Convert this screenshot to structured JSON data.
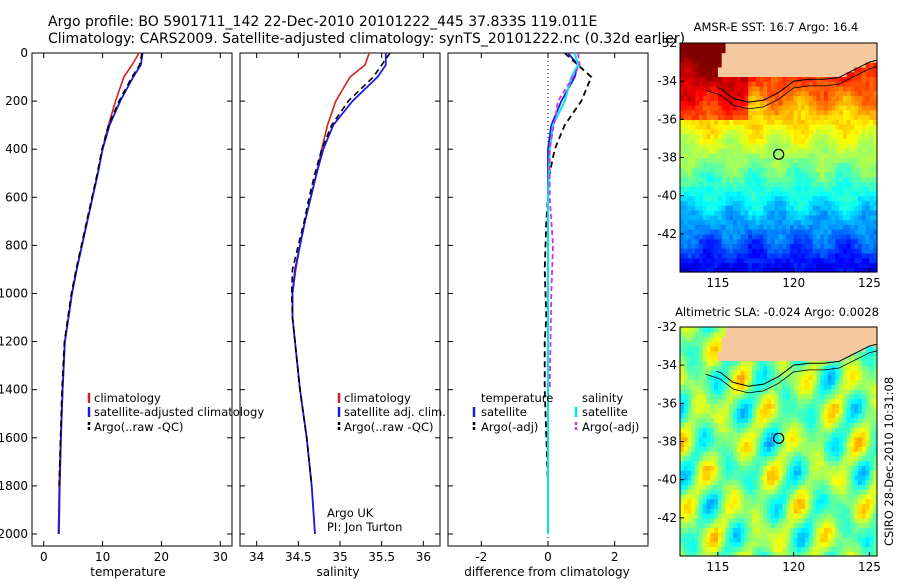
{
  "header": {
    "line1": "Argo profile: BO 5901711_142 22-Dec-2010 20101222_445 37.833S 119.011E",
    "line2": "Climatology: CARS2009. Satellite-adjusted climatology: synTS_20101222.nc (0.32d earlier)"
  },
  "side_stamp": "CSIRO 28-Dec-2010 10:31:08",
  "colors": {
    "climatology": "#d42020",
    "satellite": "#1a1ae6",
    "argo": "#000000",
    "diff_sal_sat": "#00e5ee",
    "diff_sal_argo": "#d632d6",
    "land": "#f5c8a0"
  },
  "chart_data": [
    {
      "type": "line",
      "name": "temperature-profile",
      "xlabel": "temperature",
      "ylabel": "",
      "xlim": [
        -2,
        32
      ],
      "ylim": [
        2050,
        0
      ],
      "xticks": [
        0,
        10,
        20,
        30
      ],
      "yticks": [
        0,
        200,
        400,
        600,
        800,
        1000,
        1200,
        1400,
        1600,
        1800,
        2000
      ],
      "legend": [
        "climatology",
        "satellite-adjusted climatology",
        "Argo(..raw -QC)"
      ],
      "legend_position": "lower-right",
      "series": [
        {
          "name": "climatology",
          "x": [
            16.2,
            15.0,
            13.6,
            12.2,
            11.0,
            10.0,
            9.2,
            8.3,
            7.4,
            6.5,
            5.6,
            4.8,
            4.2,
            3.6,
            3.2,
            2.95,
            2.75,
            2.6
          ],
          "y": [
            0,
            50,
            100,
            200,
            300,
            400,
            500,
            600,
            700,
            800,
            900,
            1000,
            1100,
            1200,
            1400,
            1600,
            1800,
            2000
          ]
        },
        {
          "name": "satellite-adjusted climatology",
          "x": [
            16.8,
            16.5,
            15.2,
            13.0,
            11.2,
            10.0,
            9.2,
            8.3,
            7.4,
            6.5,
            5.6,
            4.8,
            4.2,
            3.6,
            3.2,
            2.9,
            2.65,
            2.5
          ],
          "y": [
            0,
            50,
            100,
            200,
            300,
            400,
            500,
            600,
            700,
            800,
            900,
            1000,
            1100,
            1200,
            1400,
            1600,
            1800,
            2000
          ]
        },
        {
          "name": "Argo(..raw -QC)",
          "x": [
            16.7,
            16.3,
            15.0,
            12.8,
            11.0,
            9.9,
            9.1,
            8.2,
            7.3,
            6.4,
            5.5,
            4.7,
            4.1,
            3.5,
            3.1,
            2.85,
            2.6
          ],
          "y": [
            0,
            50,
            100,
            200,
            300,
            400,
            500,
            600,
            700,
            800,
            900,
            1000,
            1100,
            1200,
            1400,
            1600,
            1800
          ]
        }
      ]
    },
    {
      "type": "line",
      "name": "salinity-profile",
      "xlabel": "salinity",
      "ylabel": "",
      "xlim": [
        33.8,
        36.2
      ],
      "ylim": [
        2050,
        0
      ],
      "xticks": [
        34,
        34.5,
        35,
        35.5,
        36
      ],
      "legend": [
        "climatology",
        "satellite adj. clim.",
        "Argo(..raw -QC)"
      ],
      "legend_position": "lower-right",
      "annotation": [
        "Argo UK",
        "PI: Jon Turton"
      ],
      "series": [
        {
          "name": "climatology",
          "x": [
            35.35,
            35.3,
            35.12,
            34.95,
            34.85,
            34.78,
            34.72,
            34.65,
            34.58,
            34.52,
            34.47,
            34.43,
            34.43,
            34.46,
            34.52,
            34.6,
            34.66,
            34.7
          ],
          "y": [
            0,
            50,
            100,
            200,
            300,
            400,
            500,
            600,
            700,
            800,
            900,
            1000,
            1100,
            1200,
            1400,
            1600,
            1800,
            2000
          ]
        },
        {
          "name": "satellite adj. clim.",
          "x": [
            35.55,
            35.55,
            35.45,
            35.15,
            34.92,
            34.8,
            34.72,
            34.65,
            34.58,
            34.52,
            34.46,
            34.43,
            34.43,
            34.46,
            34.52,
            34.6,
            34.66,
            34.7
          ],
          "y": [
            0,
            50,
            100,
            200,
            300,
            400,
            500,
            600,
            700,
            800,
            900,
            1000,
            1100,
            1200,
            1400,
            1600,
            1800,
            2000
          ]
        },
        {
          "name": "Argo(..raw -QC)",
          "x": [
            35.6,
            35.5,
            35.4,
            35.1,
            34.9,
            34.78,
            34.7,
            34.63,
            34.57,
            34.5,
            34.43,
            34.42,
            34.43,
            34.46,
            34.52,
            34.6,
            34.66
          ],
          "y": [
            0,
            50,
            100,
            200,
            300,
            400,
            500,
            600,
            700,
            800,
            900,
            1000,
            1100,
            1200,
            1400,
            1600,
            1800
          ]
        }
      ]
    },
    {
      "type": "line",
      "name": "difference-profile",
      "xlabel": "difference from climatology",
      "ylabel": "",
      "xlim": [
        -3,
        3
      ],
      "ylim": [
        2050,
        0
      ],
      "xticks": [
        -2,
        0,
        2
      ],
      "legend_temperature": [
        "temperature",
        "satellite",
        "Argo(-adj)"
      ],
      "legend_salinity": [
        "salinity",
        "satellite",
        "Argo(-adj)"
      ],
      "series": [
        {
          "name": "temperature satellite",
          "x": [
            0.6,
            0.9,
            0.8,
            0.4,
            0.1,
            0.0,
            0.0,
            0.0,
            0.0,
            0.0
          ],
          "y": [
            0,
            50,
            100,
            200,
            300,
            400,
            600,
            1000,
            1600,
            2000
          ]
        },
        {
          "name": "temperature Argo(-adj)",
          "x": [
            0.5,
            1.3,
            1.0,
            0.5,
            0.2,
            0.05,
            -0.05,
            -0.1,
            -0.05,
            -0.1,
            -0.1,
            0.0
          ],
          "y": [
            0,
            100,
            200,
            300,
            400,
            500,
            700,
            900,
            1100,
            1200,
            1400,
            1800
          ]
        },
        {
          "name": "salinity satellite",
          "x": [
            0.8,
            0.9,
            0.7,
            0.5,
            0.15,
            0.05,
            0.0,
            0.0,
            0.0
          ],
          "y": [
            0,
            50,
            100,
            200,
            300,
            400,
            600,
            1000,
            2000
          ]
        },
        {
          "name": "salinity Argo(-adj)",
          "x": [
            0.9,
            0.95,
            0.75,
            0.3,
            0.05,
            0.05,
            0.15,
            0.1,
            0.05
          ],
          "y": [
            0,
            50,
            100,
            200,
            400,
            600,
            800,
            1000,
            1400
          ]
        }
      ]
    },
    {
      "type": "heatmap",
      "name": "sst-map",
      "title": "AMSR-E SST: 16.7 Argo: 16.4",
      "xlim": [
        112.5,
        125.5
      ],
      "ylim": [
        -44,
        -32
      ],
      "xticks": [
        115,
        120,
        125
      ],
      "yticks": [
        -32,
        -34,
        -36,
        -38,
        -40,
        -42
      ],
      "marker": {
        "lon": 119.011,
        "lat": -37.833
      }
    },
    {
      "type": "heatmap",
      "name": "sla-map",
      "title": "Altimetric SLA: -0.024 Argo: 0.0028",
      "xlim": [
        112.5,
        125.5
      ],
      "ylim": [
        -44,
        -32
      ],
      "xticks": [
        115,
        120,
        125
      ],
      "yticks": [
        -32,
        -34,
        -36,
        -38,
        -40,
        -42
      ],
      "marker": {
        "lon": 119.011,
        "lat": -37.833
      }
    }
  ]
}
